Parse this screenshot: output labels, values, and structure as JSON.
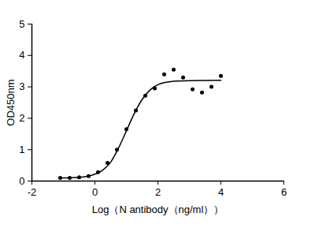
{
  "chart_data": {
    "type": "scatter",
    "x_label": "Log（N antibody（ng/ml））",
    "y_label": "OD450nm",
    "xlim": [
      -2,
      6
    ],
    "xticks": [
      -2,
      0,
      2,
      4,
      6
    ],
    "ylim": [
      0,
      5
    ],
    "yticks": [
      0,
      1,
      2,
      3,
      4,
      5
    ],
    "grid": false,
    "series": [
      {
        "type": "scatter",
        "color": "#000000",
        "marker": "circle",
        "x": [
          -1.1,
          -0.8,
          -0.5,
          -0.2,
          0.1,
          0.4,
          0.7,
          1.0,
          1.3,
          1.6,
          1.9,
          2.2,
          2.5,
          2.8,
          3.1,
          3.4,
          3.7,
          4.0
        ],
        "values": [
          0.1,
          0.1,
          0.12,
          0.16,
          0.28,
          0.58,
          1.0,
          1.65,
          2.25,
          2.72,
          2.95,
          3.4,
          3.55,
          3.3,
          2.92,
          2.82,
          3.0,
          3.35
        ]
      },
      {
        "type": "line",
        "color": "#000000",
        "line_style": "solid",
        "x": [
          -1.1,
          -0.5,
          0,
          0.25,
          0.5,
          0.75,
          1.0,
          1.25,
          1.5,
          1.75,
          2.0,
          2.5,
          3.0,
          4.0
        ],
        "values": [
          0.1,
          0.12,
          0.22,
          0.35,
          0.6,
          1.05,
          1.6,
          2.15,
          2.6,
          2.9,
          3.07,
          3.18,
          3.2,
          3.21
        ]
      }
    ]
  }
}
